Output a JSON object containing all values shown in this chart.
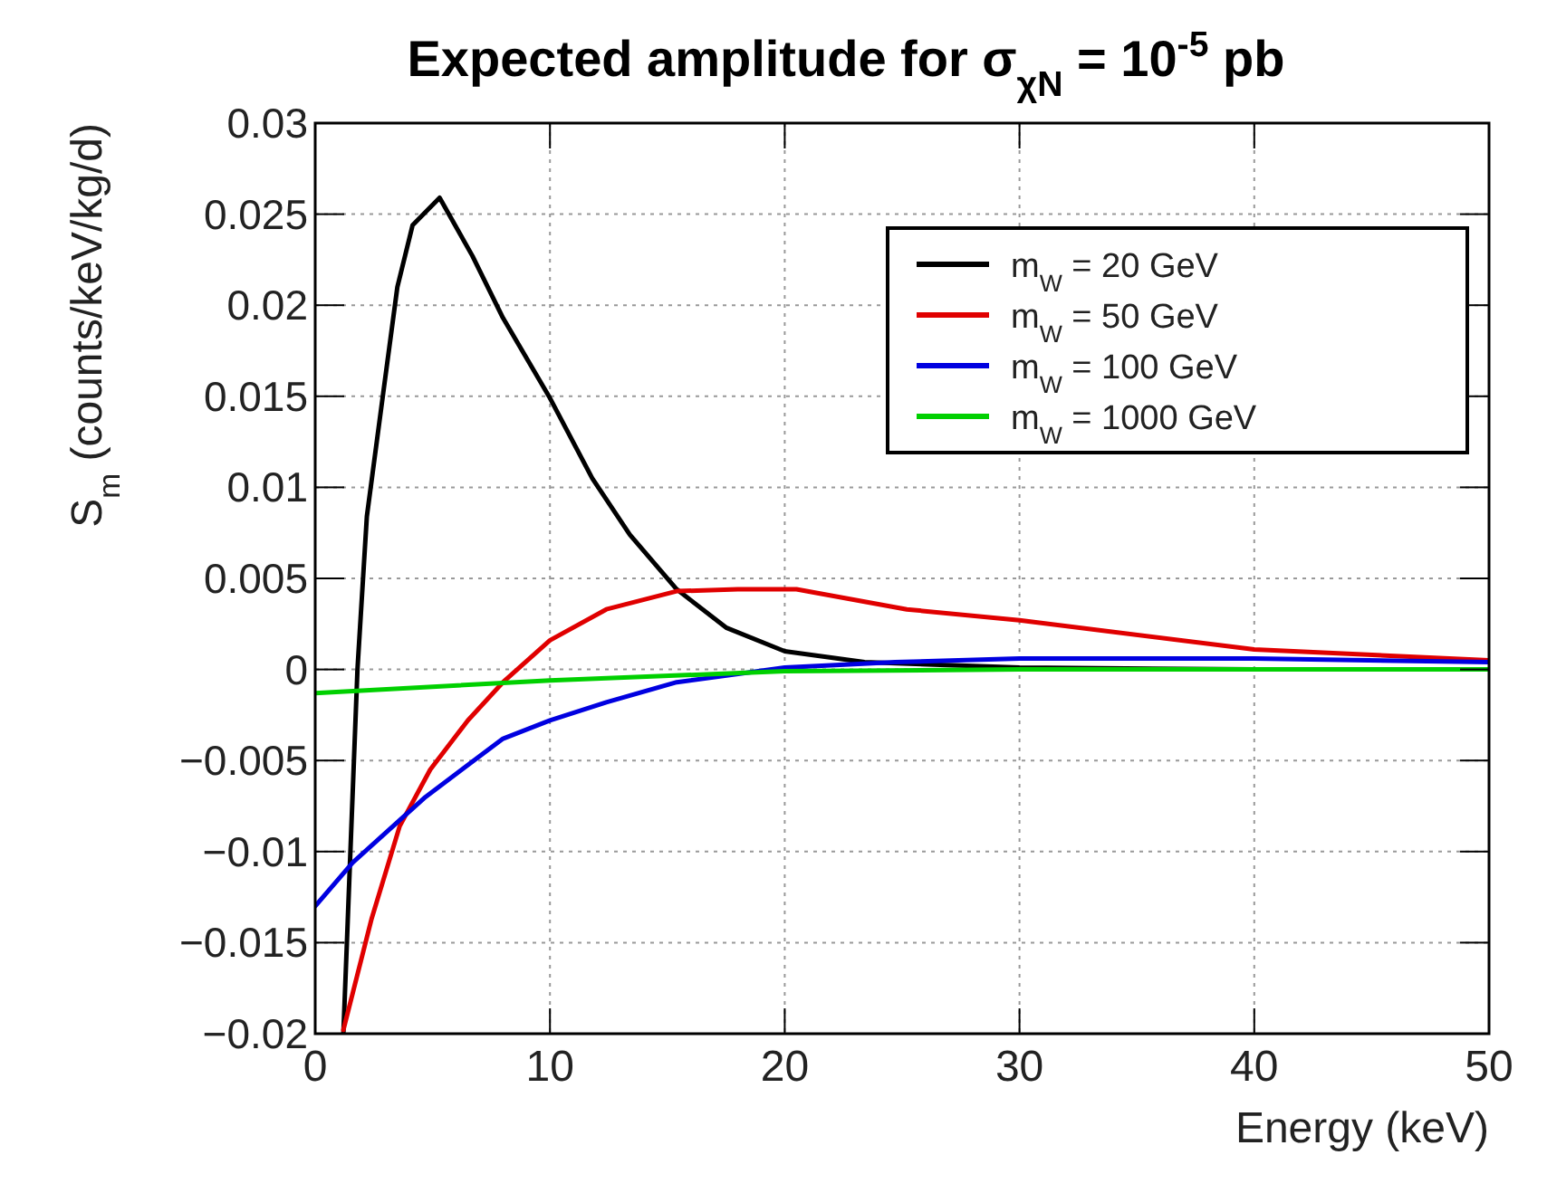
{
  "chart_data": {
    "type": "line",
    "title": "Expected amplitude for σ$_{χN}$ = 10$^{-5}$ pb",
    "xlabel": "Energy (keV)",
    "ylabel": "S$_{m}$ (counts/keV/kg/d)",
    "xlim": [
      0,
      50
    ],
    "xticks": [
      0,
      10,
      20,
      30,
      40,
      50
    ],
    "ylim": [
      -0.02,
      0.03
    ],
    "yticks": [
      {
        "value": -0.02,
        "label": "−0.02"
      },
      {
        "value": -0.015,
        "label": "−0.015"
      },
      {
        "value": -0.01,
        "label": "−0.01"
      },
      {
        "value": -0.005,
        "label": "−0.005"
      },
      0,
      0.005,
      0.01,
      0.015,
      0.02,
      0.025,
      0.03
    ],
    "grid": true,
    "legend": "top right",
    "line_style": "solid",
    "marker": "none",
    "series": [
      {
        "name": "m$_{W}$ = 20 GeV",
        "color": "#000000",
        "x": [
          1.2,
          1.8,
          2.2,
          2.9,
          3.5,
          4.15,
          5.3,
          6.7,
          8,
          10,
          11.8,
          13.4,
          15.4,
          17.5,
          20,
          23.4,
          30,
          40,
          50
        ],
        "values": [
          -0.02,
          0,
          0.0084,
          0.0152,
          0.021,
          0.0244,
          0.0259,
          0.0227,
          0.0193,
          0.0149,
          0.0105,
          0.0074,
          0.0044,
          0.0023,
          0.001,
          0.0004,
          0.0001,
          0,
          0
        ]
      },
      {
        "name": "m$_{W}$ = 50 GeV",
        "color": "#e00000",
        "x": [
          1.2,
          2.4,
          3.6,
          4.9,
          6.5,
          8,
          10,
          12.4,
          15.4,
          18,
          20.5,
          25.2,
          30,
          40,
          50
        ],
        "values": [
          -0.0198,
          -0.0137,
          -0.0086,
          -0.0055,
          -0.0028,
          -0.0007,
          0.0016,
          0.0033,
          0.0043,
          0.0044,
          0.0044,
          0.0033,
          0.0027,
          0.0011,
          0.0005
        ]
      },
      {
        "name": "m$_{W}$ = 100 GeV",
        "color": "#0000e0",
        "x": [
          0,
          1.6,
          4.7,
          8,
          10,
          12.4,
          15.4,
          20,
          24.7,
          30,
          40,
          50
        ],
        "values": [
          -0.013,
          -0.0106,
          -0.007,
          -0.0038,
          -0.0028,
          -0.0018,
          -0.0007,
          0.0001,
          0.0004,
          0.0006,
          0.0006,
          0.0004
        ]
      },
      {
        "name": "m$_{W}$ = 1000 GeV",
        "color": "#00d000",
        "x": [
          0,
          10,
          20,
          30,
          50
        ],
        "values": [
          -0.0013,
          -0.0006,
          -0.0001,
          0,
          0
        ]
      }
    ]
  }
}
